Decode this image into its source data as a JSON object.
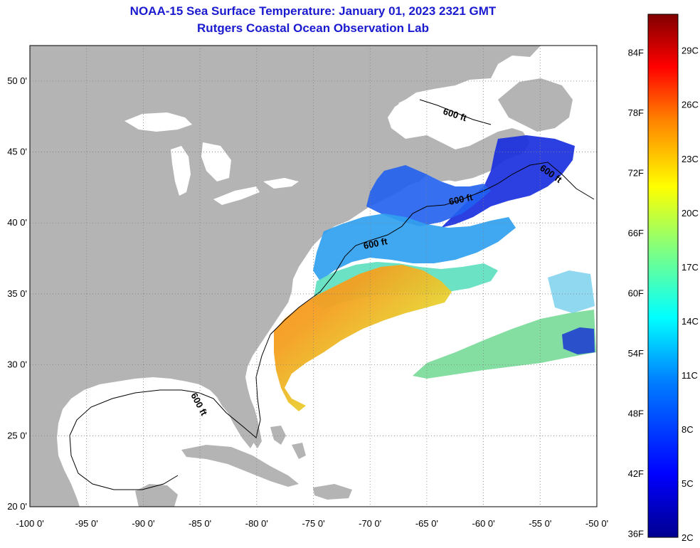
{
  "title": "NOAA-15 Sea Surface Temperature:  January 01, 2023 2321 GMT",
  "subtitle": "Rutgers Coastal Ocean Observation Lab",
  "axes": {
    "lon_ticks": [
      "-100 0'",
      "-95 0'",
      "-90 0'",
      "-85 0'",
      "-80 0'",
      "-75 0'",
      "-70 0'",
      "-65 0'",
      "-60 0'",
      "-55 0'",
      "-50 0'"
    ],
    "lat_ticks": [
      "20 0'",
      "25 0'",
      "30 0'",
      "35 0'",
      "40 0'",
      "45 0'",
      "50 0'"
    ],
    "lon_range": [
      -100,
      -50
    ],
    "lat_range": [
      20,
      52.5
    ],
    "grid": "dotted"
  },
  "colorbar": {
    "fahrenheit": [
      "84F",
      "78F",
      "72F",
      "66F",
      "60F",
      "54F",
      "48F",
      "42F",
      "36F"
    ],
    "celsius": [
      "29C",
      "26C",
      "23C",
      "20C",
      "17C",
      "14C",
      "11C",
      "8C",
      "5C",
      "2C"
    ],
    "min_c": 2,
    "max_c": 31,
    "colormap": [
      "#00008f",
      "#0000ff",
      "#0080ff",
      "#00ffff",
      "#80ff80",
      "#ffff00",
      "#ff8000",
      "#ff0000",
      "#800000"
    ]
  },
  "contours": [
    {
      "label": "600 ft"
    },
    {
      "label": "600 ft"
    },
    {
      "label": "600 ft"
    },
    {
      "label": "600 ft"
    },
    {
      "label": "600 ft"
    }
  ],
  "colors": {
    "land": "#b4b4b4",
    "ocean": "#ffffff",
    "title": "#1a1ad0"
  }
}
